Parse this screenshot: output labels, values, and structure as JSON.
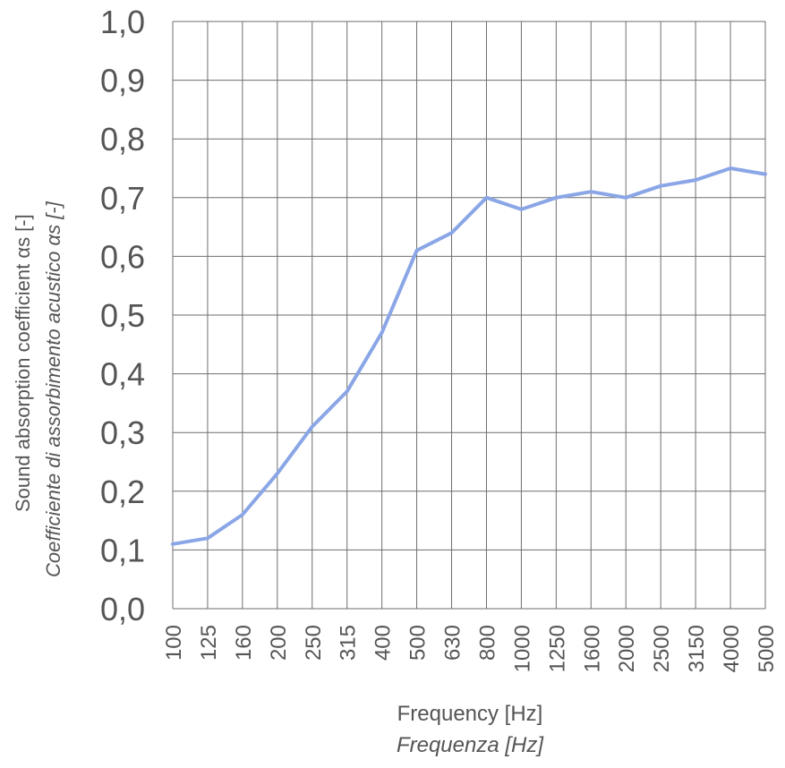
{
  "chart_data": {
    "type": "line",
    "title": "",
    "categories": [
      "100",
      "125",
      "160",
      "200",
      "250",
      "315",
      "400",
      "500",
      "630",
      "800",
      "1000",
      "1250",
      "1600",
      "2000",
      "2500",
      "3150",
      "4000",
      "5000"
    ],
    "series": [
      {
        "values": [
          0.11,
          0.12,
          0.16,
          0.23,
          0.31,
          0.37,
          0.47,
          0.61,
          0.64,
          0.7,
          0.68,
          0.7,
          0.71,
          0.7,
          0.72,
          0.73,
          0.75,
          0.74
        ]
      }
    ],
    "ylim": [
      0,
      1
    ],
    "yticks": [
      "0,0",
      "0,1",
      "0,2",
      "0,3",
      "0,4",
      "0,5",
      "0,6",
      "0,7",
      "0,8",
      "0,9",
      "1,0"
    ],
    "ylabel_en": "Sound absorption coefficient  αs [-]",
    "ylabel_it": "Coefficiente di assorbimento acustico αs [-]",
    "xlabel_en": "Frequency [Hz]",
    "xlabel_it": "Frequenza [Hz]",
    "grid": true,
    "colors": {
      "line": "#8aa6e6",
      "grid": "#6e6e6e",
      "text": "#555555"
    }
  }
}
